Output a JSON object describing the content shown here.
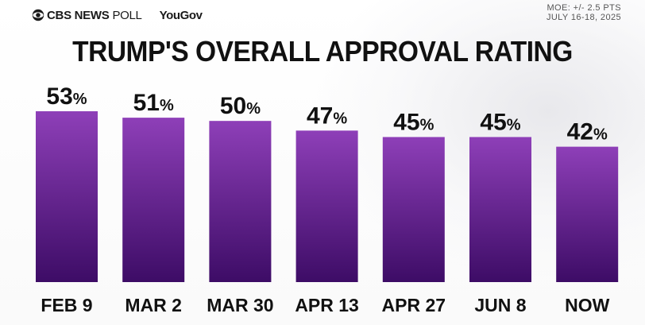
{
  "header": {
    "brand_cbs": "CBS NEWS",
    "brand_poll": "POLL",
    "brand_yougov": "YouGov",
    "moe_line1": "MOE: +/- 2.5 PTS",
    "moe_line2": "JULY 16-18, 2025"
  },
  "colors": {
    "bar_top": "#8e3fb8",
    "bar_bottom": "#3d0c66",
    "text": "#111111"
  },
  "chart_data": {
    "type": "bar",
    "title": "TRUMP'S OVERALL APPROVAL RATING",
    "categories": [
      "FEB 9",
      "MAR 2",
      "MAR 30",
      "APR 13",
      "APR 27",
      "JUN 8",
      "NOW"
    ],
    "values": [
      53,
      51,
      50,
      47,
      45,
      45,
      42
    ],
    "value_suffix": "%",
    "xlabel": "",
    "ylabel": "",
    "ylim": [
      0,
      53
    ],
    "grid": false,
    "legend": "none"
  }
}
